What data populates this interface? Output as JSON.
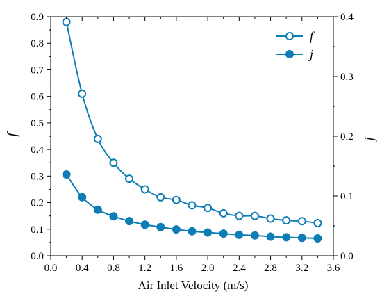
{
  "chart_data": {
    "type": "line",
    "xlabel": "Air Inlet Velocity (m/s)",
    "ylabel_left": "f",
    "ylabel_right": "j",
    "xlim": [
      0.0,
      3.6
    ],
    "ylim_left": [
      0.0,
      0.9
    ],
    "ylim_right": [
      0.0,
      0.4
    ],
    "x_ticks": [
      "0.0",
      "0.4",
      "0.8",
      "1.2",
      "1.6",
      "2.0",
      "2.4",
      "2.8",
      "3.2",
      "3.6"
    ],
    "y_left_ticks": [
      "0.0",
      "0.1",
      "0.2",
      "0.3",
      "0.4",
      "0.5",
      "0.6",
      "0.7",
      "0.8",
      "0.9"
    ],
    "y_right_ticks": [
      "0.0",
      "0.1",
      "0.2",
      "0.3",
      "0.4"
    ],
    "grid": false,
    "legend_position": "top-right",
    "color": "#0e7db5",
    "series": [
      {
        "name": "f",
        "axis": "left",
        "marker": "open-circle",
        "x": [
          0.2,
          0.4,
          0.6,
          0.8,
          1.0,
          1.2,
          1.4,
          1.6,
          1.8,
          2.0,
          2.2,
          2.4,
          2.6,
          2.8,
          3.0,
          3.2,
          3.4
        ],
        "y": [
          0.88,
          0.61,
          0.44,
          0.35,
          0.29,
          0.25,
          0.22,
          0.21,
          0.19,
          0.18,
          0.16,
          0.15,
          0.15,
          0.14,
          0.133,
          0.13,
          0.123
        ]
      },
      {
        "name": "j",
        "axis": "right",
        "marker": "filled-circle",
        "x": [
          0.2,
          0.4,
          0.6,
          0.8,
          1.0,
          1.2,
          1.4,
          1.6,
          1.8,
          2.0,
          2.2,
          2.4,
          2.6,
          2.8,
          3.0,
          3.2,
          3.4
        ],
        "y": [
          0.136,
          0.098,
          0.077,
          0.066,
          0.058,
          0.052,
          0.048,
          0.044,
          0.041,
          0.039,
          0.037,
          0.035,
          0.034,
          0.032,
          0.031,
          0.03,
          0.029
        ]
      }
    ]
  }
}
